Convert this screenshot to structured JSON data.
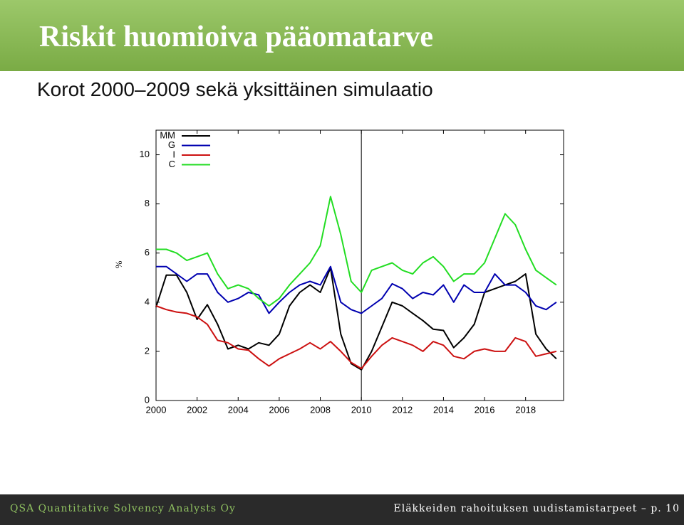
{
  "title": "Riskit huomioiva pääomatarve",
  "subtitle": "Korot 2000–2009 sekä yksittäinen simulaatio",
  "footer": {
    "left": "QSA Quantitative Solvency Analysts Oy",
    "right": "Eläkkeiden rahoituksen uudistamistarpeet – p. 10"
  },
  "chart_data": {
    "type": "line",
    "y_label": "%",
    "legend": "top-left",
    "grid": false,
    "xlim": [
      2000,
      2019.85
    ],
    "ylim": [
      0,
      11
    ],
    "xticks": [
      2000,
      2002,
      2004,
      2006,
      2008,
      2010,
      2012,
      2014,
      2016,
      2018
    ],
    "yticks": [
      0,
      2,
      4,
      6,
      8,
      10
    ],
    "vlines": [
      2010
    ],
    "x": [
      2000,
      2000.5,
      2001,
      2001.5,
      2002,
      2002.5,
      2003,
      2003.5,
      2004,
      2004.5,
      2005,
      2005.5,
      2006,
      2006.5,
      2007,
      2007.5,
      2008,
      2008.5,
      2009,
      2009.5,
      2010,
      2010.5,
      2011,
      2011.5,
      2012,
      2012.5,
      2013,
      2013.5,
      2014,
      2014.5,
      2015,
      2015.5,
      2016,
      2016.5,
      2017,
      2017.5,
      2018,
      2018.5,
      2019,
      2019.5
    ],
    "series": [
      {
        "name": "MM",
        "color": "#000000",
        "values": [
          3.8,
          5.1,
          5.1,
          4.4,
          3.3,
          3.9,
          3.1,
          2.1,
          2.25,
          2.1,
          2.35,
          2.25,
          2.7,
          3.85,
          4.4,
          4.7,
          4.4,
          5.4,
          2.7,
          1.5,
          1.25,
          2.0,
          3.0,
          4.0,
          3.85,
          3.55,
          3.25,
          2.9,
          2.85,
          2.15,
          2.55,
          3.1,
          4.4,
          4.55,
          4.7,
          4.85,
          5.15,
          2.7,
          2.1,
          1.7
        ]
      },
      {
        "name": "G",
        "color": "#0000b0",
        "values": [
          5.45,
          5.45,
          5.15,
          4.85,
          5.15,
          5.15,
          4.4,
          4.0,
          4.15,
          4.4,
          4.3,
          3.55,
          4.0,
          4.4,
          4.7,
          4.85,
          4.7,
          5.45,
          4.0,
          3.7,
          3.55,
          3.85,
          4.15,
          4.75,
          4.55,
          4.15,
          4.4,
          4.3,
          4.7,
          4.0,
          4.7,
          4.4,
          4.4,
          5.15,
          4.7,
          4.7,
          4.4,
          3.85,
          3.7,
          4.0
        ]
      },
      {
        "name": "I",
        "color": "#cc1111",
        "values": [
          3.85,
          3.7,
          3.6,
          3.55,
          3.4,
          3.1,
          2.45,
          2.35,
          2.1,
          2.05,
          1.7,
          1.4,
          1.7,
          1.9,
          2.1,
          2.35,
          2.1,
          2.4,
          2.0,
          1.55,
          1.3,
          1.8,
          2.25,
          2.55,
          2.4,
          2.25,
          2.0,
          2.4,
          2.25,
          1.8,
          1.7,
          2.0,
          2.1,
          2.0,
          2.0,
          2.55,
          2.4,
          1.8,
          1.9,
          2.0
        ]
      },
      {
        "name": "C",
        "color": "#22dd22",
        "values": [
          6.15,
          6.15,
          6.0,
          5.7,
          5.85,
          6.0,
          5.15,
          4.55,
          4.7,
          4.55,
          4.15,
          3.85,
          4.15,
          4.7,
          5.15,
          5.6,
          6.3,
          8.3,
          6.75,
          4.85,
          4.4,
          5.3,
          5.45,
          5.6,
          5.3,
          5.15,
          5.6,
          5.85,
          5.45,
          4.85,
          5.15,
          5.15,
          5.6,
          6.6,
          7.6,
          7.15,
          6.15,
          5.3,
          5.0,
          4.7
        ]
      }
    ]
  }
}
